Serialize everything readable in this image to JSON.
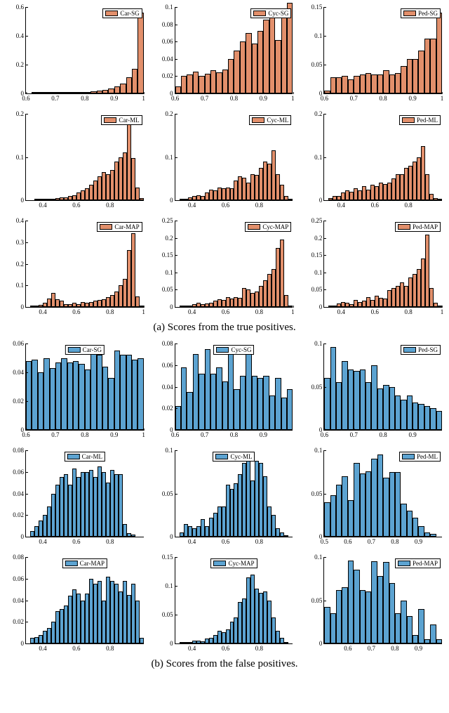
{
  "colors": {
    "tp": "#e28f6b",
    "fp": "#5ca3d1",
    "axis": "#000000",
    "bg": "#ffffff"
  },
  "captions": {
    "a": "(a) Scores from the true positives.",
    "b": "(b) Scores from the false positives."
  },
  "groups": [
    {
      "id": "tp",
      "color_key": "tp",
      "panels": [
        {
          "legend": "Car-SG",
          "legend_align": "right",
          "xlim": [
            0.6,
            1.0
          ],
          "xticks": [
            0.6,
            0.7,
            0.8,
            0.9,
            1
          ],
          "ylim": [
            0,
            0.6
          ],
          "yticks": [
            0,
            0.2,
            0.4,
            0.6
          ],
          "nbins": 20,
          "values": [
            0,
            0.002,
            0.002,
            0.002,
            0.003,
            0.003,
            0.004,
            0.006,
            0.008,
            0.01,
            0.012,
            0.015,
            0.018,
            0.025,
            0.035,
            0.05,
            0.07,
            0.11,
            0.17,
            0.56
          ]
        },
        {
          "legend": "Cyc-SG",
          "legend_align": "right",
          "xlim": [
            0.6,
            1.0
          ],
          "xticks": [
            0.6,
            0.7,
            0.8,
            0.9,
            1
          ],
          "ylim": [
            0,
            0.1
          ],
          "yticks": [
            0,
            0.02,
            0.04,
            0.06,
            0.08,
            0.1
          ],
          "nbins": 20,
          "values": [
            0.008,
            0.02,
            0.022,
            0.025,
            0.02,
            0.023,
            0.027,
            0.024,
            0.028,
            0.04,
            0.05,
            0.06,
            0.07,
            0.058,
            0.072,
            0.085,
            0.088,
            0.062,
            0.095,
            0.105
          ]
        },
        {
          "legend": "Ped-SG",
          "legend_align": "right",
          "xlim": [
            0.6,
            1.0
          ],
          "xticks": [
            0.6,
            0.7,
            0.8,
            0.9,
            1
          ],
          "ylim": [
            0,
            0.15
          ],
          "yticks": [
            0,
            0.05,
            0.1,
            0.15
          ],
          "nbins": 20,
          "values": [
            0.005,
            0.028,
            0.028,
            0.03,
            0.025,
            0.03,
            0.033,
            0.035,
            0.033,
            0.033,
            0.04,
            0.033,
            0.035,
            0.048,
            0.06,
            0.06,
            0.075,
            0.095,
            0.095,
            0.14
          ]
        },
        {
          "legend": "Car-ML",
          "legend_align": "right",
          "xlim": [
            0.3,
            1.0
          ],
          "xticks": [
            0.4,
            0.6,
            0.8
          ],
          "ylim": [
            0,
            0.2
          ],
          "yticks": [
            0,
            0.1,
            0.2
          ],
          "nbins": 28,
          "values": [
            0,
            0,
            0.002,
            0.002,
            0.002,
            0.003,
            0.004,
            0.005,
            0.007,
            0.007,
            0.01,
            0.012,
            0.018,
            0.022,
            0.028,
            0.035,
            0.045,
            0.055,
            0.065,
            0.06,
            0.07,
            0.09,
            0.1,
            0.11,
            0.195,
            0.098,
            0.03,
            0.005
          ]
        },
        {
          "legend": "Cyc-ML",
          "legend_align": "right",
          "xlim": [
            0.3,
            1.0
          ],
          "xticks": [
            0.4,
            0.6,
            0.8
          ],
          "ylim": [
            0,
            0.2
          ],
          "yticks": [
            0,
            0.1,
            0.2
          ],
          "nbins": 28,
          "values": [
            0,
            0.003,
            0.003,
            0.007,
            0.009,
            0.012,
            0.01,
            0.018,
            0.025,
            0.022,
            0.03,
            0.028,
            0.03,
            0.027,
            0.045,
            0.055,
            0.052,
            0.04,
            0.06,
            0.058,
            0.075,
            0.09,
            0.085,
            0.115,
            0.06,
            0.035,
            0.01,
            0.003
          ]
        },
        {
          "legend": "Ped-ML",
          "legend_align": "right",
          "xlim": [
            0.3,
            1.0
          ],
          "xticks": [
            0.4,
            0.6,
            0.8
          ],
          "ylim": [
            0,
            0.2
          ],
          "yticks": [
            0,
            0.1,
            0.2
          ],
          "nbins": 28,
          "values": [
            0,
            0.005,
            0.01,
            0.01,
            0.018,
            0.022,
            0.02,
            0.028,
            0.023,
            0.032,
            0.025,
            0.035,
            0.032,
            0.04,
            0.038,
            0.04,
            0.05,
            0.06,
            0.06,
            0.075,
            0.08,
            0.09,
            0.1,
            0.125,
            0.06,
            0.015,
            0.005,
            0.002
          ]
        },
        {
          "legend": "Car-MAP",
          "legend_align": "right",
          "xlim": [
            0.3,
            1.0
          ],
          "xticks": [
            0.4,
            0.6,
            0.8,
            1
          ],
          "ylim": [
            0,
            0.4
          ],
          "yticks": [
            0,
            0.1,
            0.2,
            0.3,
            0.4
          ],
          "nbins": 28,
          "values": [
            0,
            0.002,
            0.003,
            0.01,
            0.018,
            0.04,
            0.065,
            0.035,
            0.028,
            0.014,
            0.012,
            0.018,
            0.014,
            0.022,
            0.018,
            0.022,
            0.028,
            0.032,
            0.035,
            0.045,
            0.055,
            0.07,
            0.1,
            0.13,
            0.265,
            0.34,
            0.05,
            0.005
          ]
        },
        {
          "legend": "Cyc-MAP",
          "legend_align": "right",
          "xlim": [
            0.3,
            1.0
          ],
          "xticks": [
            0.4,
            0.6,
            0.8,
            1
          ],
          "ylim": [
            0,
            0.25
          ],
          "yticks": [
            0,
            0.05,
            0.1,
            0.15,
            0.2,
            0.25
          ],
          "nbins": 28,
          "values": [
            0,
            0.002,
            0.003,
            0.005,
            0.008,
            0.012,
            0.008,
            0.01,
            0.013,
            0.018,
            0.022,
            0.02,
            0.028,
            0.025,
            0.028,
            0.026,
            0.055,
            0.05,
            0.04,
            0.045,
            0.06,
            0.078,
            0.095,
            0.11,
            0.17,
            0.195,
            0.035,
            0.005
          ]
        },
        {
          "legend": "Ped-MAP",
          "legend_align": "right",
          "xlim": [
            0.3,
            1.0
          ],
          "xticks": [
            0.4,
            0.6,
            0.8,
            1
          ],
          "ylim": [
            0,
            0.25
          ],
          "yticks": [
            0,
            0.05,
            0.1,
            0.15,
            0.2,
            0.25
          ],
          "nbins": 28,
          "values": [
            0,
            0.003,
            0.005,
            0.01,
            0.014,
            0.012,
            0.008,
            0.02,
            0.015,
            0.018,
            0.028,
            0.02,
            0.032,
            0.027,
            0.025,
            0.048,
            0.055,
            0.06,
            0.072,
            0.062,
            0.085,
            0.095,
            0.11,
            0.14,
            0.21,
            0.055,
            0.012,
            0.003
          ]
        }
      ]
    },
    {
      "id": "fp",
      "color_key": "fp",
      "panels": [
        {
          "legend": "Car-SG",
          "legend_align": "center",
          "xlim": [
            0.6,
            1.0
          ],
          "xticks": [
            0.6,
            0.7,
            0.8,
            0.9,
            1
          ],
          "ylim": [
            0,
            0.06
          ],
          "yticks": [
            0,
            0.02,
            0.04,
            0.06
          ],
          "nbins": 20,
          "values": [
            0.048,
            0.049,
            0.04,
            0.05,
            0.043,
            0.047,
            0.05,
            0.047,
            0.048,
            0.046,
            0.042,
            0.054,
            0.052,
            0.044,
            0.036,
            0.055,
            0.052,
            0.052,
            0.049,
            0.05
          ]
        },
        {
          "legend": "Cyc-SG",
          "legend_align": "center",
          "xlim": [
            0.6,
            1.0
          ],
          "xticks": [
            0.6,
            0.7,
            0.8,
            0.9
          ],
          "ylim": [
            0,
            0.08
          ],
          "yticks": [
            0,
            0.02,
            0.04,
            0.06,
            0.08
          ],
          "nbins": 20,
          "values": [
            0.022,
            0.058,
            0.035,
            0.07,
            0.052,
            0.075,
            0.052,
            0.058,
            0.045,
            0.07,
            0.038,
            0.05,
            0.07,
            0.05,
            0.048,
            0.05,
            0.032,
            0.048,
            0.03,
            0.038
          ]
        },
        {
          "legend": "Ped-SG",
          "legend_align": "right",
          "xlim": [
            0.6,
            1.0
          ],
          "xticks": [
            0.6,
            0.7,
            0.8,
            0.9
          ],
          "ylim": [
            0,
            0.1
          ],
          "yticks": [
            0,
            0.05,
            0.1
          ],
          "nbins": 20,
          "values": [
            0.06,
            0.096,
            0.055,
            0.08,
            0.07,
            0.068,
            0.07,
            0.055,
            0.075,
            0.048,
            0.052,
            0.05,
            0.04,
            0.035,
            0.04,
            0.032,
            0.03,
            0.028,
            0.025,
            0.022
          ]
        },
        {
          "legend": "Car-ML",
          "legend_align": "center",
          "xlim": [
            0.3,
            1.0
          ],
          "xticks": [
            0.4,
            0.6,
            0.8
          ],
          "ylim": [
            0,
            0.08
          ],
          "yticks": [
            0,
            0.02,
            0.04,
            0.06,
            0.08
          ],
          "nbins": 28,
          "values": [
            0,
            0.005,
            0.01,
            0.015,
            0.02,
            0.028,
            0.04,
            0.048,
            0.055,
            0.058,
            0.048,
            0.063,
            0.055,
            0.06,
            0.06,
            0.062,
            0.055,
            0.065,
            0.06,
            0.05,
            0.062,
            0.058,
            0.058,
            0.012,
            0.003,
            0.002,
            0,
            0
          ]
        },
        {
          "legend": "Cyc-ML",
          "legend_align": "center",
          "xlim": [
            0.3,
            1.0
          ],
          "xticks": [
            0.4,
            0.6,
            0.8
          ],
          "ylim": [
            0,
            0.1
          ],
          "yticks": [
            0,
            0.05,
            0.1
          ],
          "nbins": 28,
          "values": [
            0,
            0.005,
            0.015,
            0.012,
            0.01,
            0.012,
            0.02,
            0.012,
            0.022,
            0.028,
            0.035,
            0.035,
            0.06,
            0.055,
            0.062,
            0.072,
            0.085,
            0.09,
            0.065,
            0.088,
            0.085,
            0.07,
            0.035,
            0.025,
            0.01,
            0.005,
            0.002,
            0
          ]
        },
        {
          "legend": "Ped-ML",
          "legend_align": "right",
          "xlim": [
            0.5,
            1.0
          ],
          "xticks": [
            0.5,
            0.6,
            0.7,
            0.8,
            0.9
          ],
          "ylim": [
            0,
            0.1
          ],
          "yticks": [
            0,
            0.05,
            0.1
          ],
          "nbins": 20,
          "values": [
            0.04,
            0.048,
            0.06,
            0.07,
            0.042,
            0.085,
            0.073,
            0.076,
            0.09,
            0.095,
            0.068,
            0.075,
            0.075,
            0.038,
            0.03,
            0.022,
            0.012,
            0.005,
            0.003,
            0
          ]
        },
        {
          "legend": "Car-MAP",
          "legend_align": "center",
          "xlim": [
            0.3,
            1.0
          ],
          "xticks": [
            0.4,
            0.6,
            0.8
          ],
          "ylim": [
            0,
            0.08
          ],
          "yticks": [
            0,
            0.02,
            0.04,
            0.06,
            0.08
          ],
          "nbins": 28,
          "values": [
            0,
            0.005,
            0.006,
            0.008,
            0.012,
            0.014,
            0.02,
            0.03,
            0.032,
            0.035,
            0.044,
            0.05,
            0.046,
            0.04,
            0.046,
            0.06,
            0.055,
            0.058,
            0.04,
            0.062,
            0.058,
            0.055,
            0.048,
            0.058,
            0.045,
            0.055,
            0.04,
            0.005
          ]
        },
        {
          "legend": "Cyc-MAP",
          "legend_align": "center",
          "xlim": [
            0.3,
            1.0
          ],
          "xticks": [
            0.4,
            0.6,
            0.8
          ],
          "ylim": [
            0,
            0.15
          ],
          "yticks": [
            0,
            0.05,
            0.1,
            0.15
          ],
          "nbins": 28,
          "values": [
            0,
            0.002,
            0.003,
            0.002,
            0.005,
            0.005,
            0.004,
            0.008,
            0.01,
            0.015,
            0.022,
            0.02,
            0.025,
            0.038,
            0.045,
            0.072,
            0.078,
            0.115,
            0.12,
            0.095,
            0.088,
            0.09,
            0.075,
            0.045,
            0.022,
            0.01,
            0.003,
            0
          ]
        },
        {
          "legend": "Ped-MAP",
          "legend_align": "right",
          "xlim": [
            0.5,
            1.0
          ],
          "xticks": [
            0.6,
            0.7,
            0.8,
            0.9
          ],
          "ylim": [
            0,
            0.1
          ],
          "yticks": [
            0,
            0.05,
            0.1
          ],
          "nbins": 20,
          "values": [
            0.042,
            0.035,
            0.062,
            0.065,
            0.096,
            0.085,
            0.062,
            0.06,
            0.095,
            0.078,
            0.094,
            0.07,
            0.035,
            0.05,
            0.032,
            0.01,
            0.04,
            0.005,
            0.022,
            0.005
          ]
        }
      ]
    }
  ]
}
